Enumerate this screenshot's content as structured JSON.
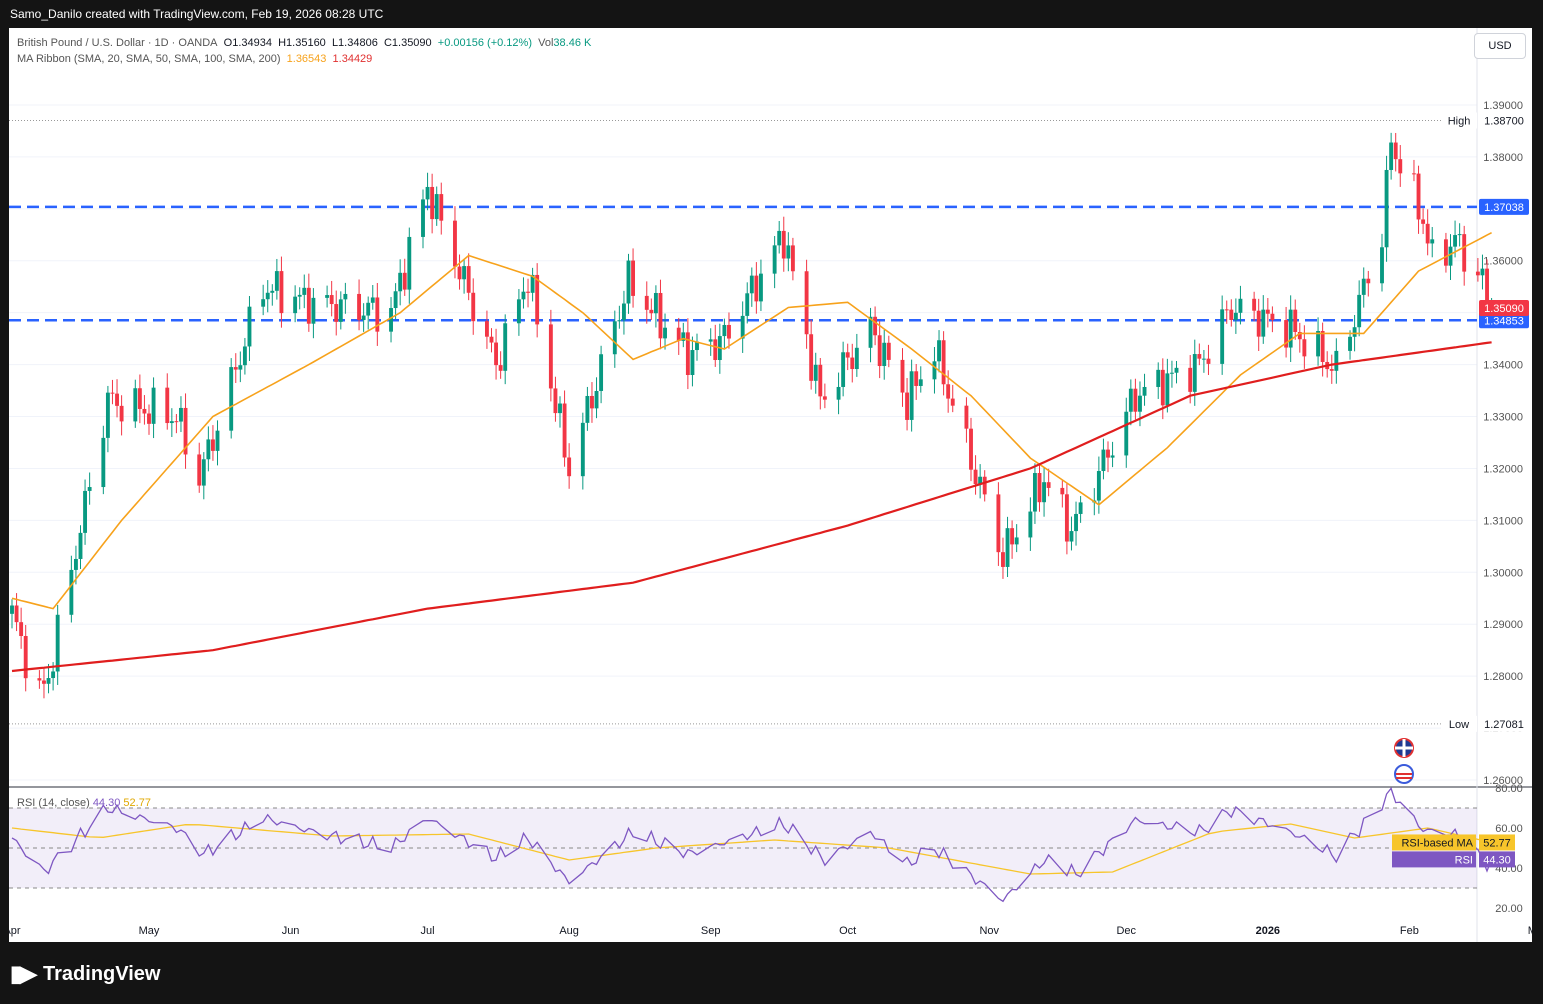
{
  "header": {
    "credit": "Samo_Danilo created with TradingView.com, Feb 19, 2026 08:28 UTC"
  },
  "legend": {
    "symbol": "British Pound / U.S. Dollar · 1D · OANDA",
    "open": "O1.34934",
    "high": "H1.35160",
    "low": "L1.34806",
    "close": "C1.35090",
    "change": "+0.00156 (+0.12%)",
    "vol_label": "Vol",
    "vol": "38.46 K",
    "ma_label": "MA Ribbon (SMA, 20, SMA, 50, SMA, 100, SMA, 200)",
    "ma_val1": "1.36543",
    "ma_val2": "1.34429"
  },
  "currency_button": "USD",
  "footer": {
    "brand": "TradingView"
  },
  "colors": {
    "up": "#089981",
    "down": "#f23645",
    "ma20": "#f7a21b",
    "ma200": "#e01e1e",
    "level": "#2962ff",
    "rsi": "#7e57c2",
    "rsi_ma": "#f7c52b"
  },
  "chart_data": [
    {
      "type": "candlestick",
      "title": "British Pound / U.S. Dollar · 1D · OANDA",
      "ylim": [
        1.26,
        1.395
      ],
      "y_ticks": [
        "1.26000",
        "1.27000",
        "1.28000",
        "1.29000",
        "1.30000",
        "1.31000",
        "1.32000",
        "1.33000",
        "1.34000",
        "1.35000",
        "1.36000",
        "1.37000",
        "1.38000",
        "1.39000"
      ],
      "x_ticks": [
        "Apr",
        "May",
        "Jun",
        "Jul",
        "Aug",
        "Sep",
        "Oct",
        "Nov",
        "Dec",
        "2026",
        "Feb",
        "Mar"
      ],
      "price_labels": {
        "high_label": "High",
        "high": "1.38700",
        "low_label": "Low",
        "low": "1.27081",
        "last": "1.35090",
        "level_top": "1.37038",
        "level_bottom": "1.34853"
      },
      "horizontal_levels": [
        1.37038,
        1.34853
      ],
      "anchors": [
        {
          "date": "2025-04-01",
          "close": 1.292
        },
        {
          "date": "2025-04-07",
          "close": 1.276
        },
        {
          "date": "2025-04-09",
          "close": 1.28
        },
        {
          "date": "2025-04-22",
          "close": 1.333
        },
        {
          "date": "2025-05-07",
          "close": 1.33
        },
        {
          "date": "2025-05-12",
          "close": 1.318
        },
        {
          "date": "2025-05-26",
          "close": 1.355
        },
        {
          "date": "2025-06-05",
          "close": 1.352
        },
        {
          "date": "2025-06-23",
          "close": 1.35
        },
        {
          "date": "2025-07-01",
          "close": 1.374
        },
        {
          "date": "2025-07-16",
          "close": 1.34
        },
        {
          "date": "2025-07-23",
          "close": 1.357
        },
        {
          "date": "2025-08-01",
          "close": 1.32
        },
        {
          "date": "2025-08-14",
          "close": 1.356
        },
        {
          "date": "2025-08-27",
          "close": 1.342
        },
        {
          "date": "2025-09-04",
          "close": 1.345
        },
        {
          "date": "2025-09-17",
          "close": 1.365
        },
        {
          "date": "2025-09-25",
          "close": 1.333
        },
        {
          "date": "2025-10-06",
          "close": 1.347
        },
        {
          "date": "2025-10-14",
          "close": 1.333
        },
        {
          "date": "2025-10-20",
          "close": 1.343
        },
        {
          "date": "2025-11-04",
          "close": 1.303
        },
        {
          "date": "2025-11-13",
          "close": 1.318
        },
        {
          "date": "2025-11-19",
          "close": 1.308
        },
        {
          "date": "2025-12-03",
          "close": 1.334
        },
        {
          "date": "2025-12-17",
          "close": 1.34
        },
        {
          "date": "2025-12-24",
          "close": 1.351
        },
        {
          "date": "2026-01-06",
          "close": 1.347
        },
        {
          "date": "2026-01-16",
          "close": 1.339
        },
        {
          "date": "2026-01-26",
          "close": 1.365
        },
        {
          "date": "2026-01-28",
          "close": 1.383
        },
        {
          "date": "2026-02-04",
          "close": 1.368
        },
        {
          "date": "2026-02-06",
          "close": 1.36
        },
        {
          "date": "2026-02-11",
          "close": 1.364
        },
        {
          "date": "2026-02-17",
          "close": 1.356
        },
        {
          "date": "2026-02-18",
          "close": 1.3493
        },
        {
          "date": "2026-02-19",
          "close": 1.3509
        }
      ],
      "ma20_anchors": [
        {
          "date": "2025-04-01",
          "value": 1.295
        },
        {
          "date": "2025-04-10",
          "value": 1.293
        },
        {
          "date": "2025-04-25",
          "value": 1.31
        },
        {
          "date": "2025-05-15",
          "value": 1.33
        },
        {
          "date": "2025-06-05",
          "value": 1.34
        },
        {
          "date": "2025-06-25",
          "value": 1.35
        },
        {
          "date": "2025-07-10",
          "value": 1.361
        },
        {
          "date": "2025-07-24",
          "value": 1.357
        },
        {
          "date": "2025-08-04",
          "value": 1.35
        },
        {
          "date": "2025-08-15",
          "value": 1.341
        },
        {
          "date": "2025-08-26",
          "value": 1.345
        },
        {
          "date": "2025-09-04",
          "value": 1.343
        },
        {
          "date": "2025-09-18",
          "value": 1.351
        },
        {
          "date": "2025-10-01",
          "value": 1.352
        },
        {
          "date": "2025-10-15",
          "value": 1.343
        },
        {
          "date": "2025-10-28",
          "value": 1.334
        },
        {
          "date": "2025-11-10",
          "value": 1.322
        },
        {
          "date": "2025-11-25",
          "value": 1.313
        },
        {
          "date": "2025-12-10",
          "value": 1.324
        },
        {
          "date": "2025-12-26",
          "value": 1.338
        },
        {
          "date": "2026-01-08",
          "value": 1.346
        },
        {
          "date": "2026-01-22",
          "value": 1.346
        },
        {
          "date": "2026-02-03",
          "value": 1.358
        },
        {
          "date": "2026-02-19",
          "value": 1.3654
        }
      ],
      "ma200_anchors": [
        {
          "date": "2025-04-01",
          "value": 1.281
        },
        {
          "date": "2025-05-15",
          "value": 1.285
        },
        {
          "date": "2025-07-01",
          "value": 1.293
        },
        {
          "date": "2025-08-15",
          "value": 1.298
        },
        {
          "date": "2025-10-01",
          "value": 1.309
        },
        {
          "date": "2025-11-10",
          "value": 1.32
        },
        {
          "date": "2025-12-15",
          "value": 1.334
        },
        {
          "date": "2026-01-15",
          "value": 1.34
        },
        {
          "date": "2026-02-19",
          "value": 1.3443
        }
      ]
    },
    {
      "type": "line",
      "title": "RSI (14, close)",
      "rsi_value": "44.30",
      "rsi_ma_value": "52.77",
      "rsi_label": "RSI",
      "rsi_ma_label": "RSI-based MA",
      "ylim": [
        10,
        80
      ],
      "y_ticks": [
        "20.00",
        "40.00",
        "60.00",
        "80.00"
      ],
      "band": [
        30,
        70
      ],
      "rsi_anchors": [
        {
          "date": "2025-04-01",
          "value": 55
        },
        {
          "date": "2025-04-08",
          "value": 38
        },
        {
          "date": "2025-04-22",
          "value": 70
        },
        {
          "date": "2025-05-07",
          "value": 60
        },
        {
          "date": "2025-05-13",
          "value": 47
        },
        {
          "date": "2025-05-26",
          "value": 65
        },
        {
          "date": "2025-06-06",
          "value": 58
        },
        {
          "date": "2025-06-23",
          "value": 50
        },
        {
          "date": "2025-07-01",
          "value": 65
        },
        {
          "date": "2025-07-16",
          "value": 45
        },
        {
          "date": "2025-07-23",
          "value": 55
        },
        {
          "date": "2025-08-01",
          "value": 33
        },
        {
          "date": "2025-08-15",
          "value": 58
        },
        {
          "date": "2025-08-27",
          "value": 47
        },
        {
          "date": "2025-09-17",
          "value": 62
        },
        {
          "date": "2025-09-26",
          "value": 44
        },
        {
          "date": "2025-10-06",
          "value": 58
        },
        {
          "date": "2025-10-14",
          "value": 42
        },
        {
          "date": "2025-10-20",
          "value": 50
        },
        {
          "date": "2025-11-04",
          "value": 24
        },
        {
          "date": "2025-11-13",
          "value": 44
        },
        {
          "date": "2025-11-20",
          "value": 37
        },
        {
          "date": "2025-12-03",
          "value": 64
        },
        {
          "date": "2025-12-17",
          "value": 58
        },
        {
          "date": "2025-12-24",
          "value": 69
        },
        {
          "date": "2026-01-06",
          "value": 58
        },
        {
          "date": "2026-01-16",
          "value": 46
        },
        {
          "date": "2026-01-28",
          "value": 78
        },
        {
          "date": "2026-02-04",
          "value": 59
        },
        {
          "date": "2026-02-11",
          "value": 57
        },
        {
          "date": "2026-02-18",
          "value": 42
        },
        {
          "date": "2026-02-19",
          "value": 44.3
        }
      ],
      "rsi_ma_anchors": [
        {
          "date": "2025-04-01",
          "value": 60
        },
        {
          "date": "2025-04-20",
          "value": 55
        },
        {
          "date": "2025-05-10",
          "value": 62
        },
        {
          "date": "2025-06-10",
          "value": 56
        },
        {
          "date": "2025-07-10",
          "value": 57
        },
        {
          "date": "2025-08-01",
          "value": 44
        },
        {
          "date": "2025-08-20",
          "value": 50
        },
        {
          "date": "2025-09-15",
          "value": 54
        },
        {
          "date": "2025-10-10",
          "value": 50
        },
        {
          "date": "2025-11-10",
          "value": 37
        },
        {
          "date": "2025-11-28",
          "value": 38
        },
        {
          "date": "2025-12-20",
          "value": 58
        },
        {
          "date": "2026-01-06",
          "value": 62
        },
        {
          "date": "2026-01-20",
          "value": 55
        },
        {
          "date": "2026-02-05",
          "value": 60
        },
        {
          "date": "2026-02-19",
          "value": 52.77
        }
      ]
    }
  ]
}
